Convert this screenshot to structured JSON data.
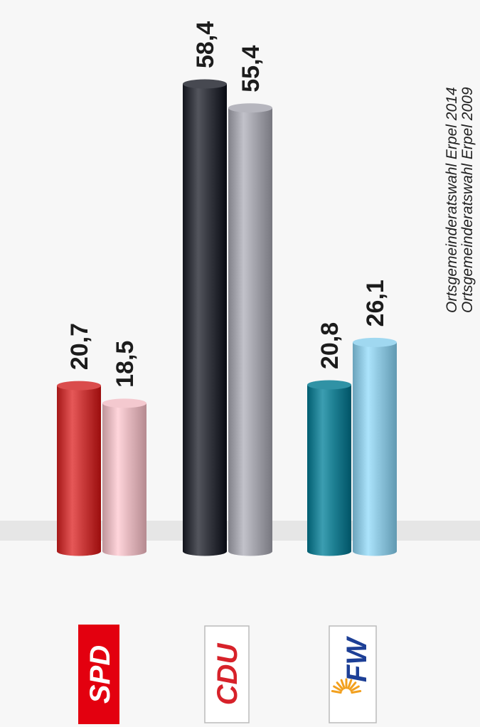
{
  "chart_data": {
    "type": "bar",
    "orientation": "rotated-90-ccw",
    "style": "3d-cylinder",
    "categories": [
      "SPD",
      "CDU",
      "FW"
    ],
    "series": [
      {
        "name": "Ortsgemeinderatswahl Erpel 2014",
        "values": [
          20.7,
          58.4,
          20.8
        ],
        "labels": [
          "20,7",
          "58,4",
          "20,8"
        ]
      },
      {
        "name": "Ortsgemeinderatswahl Erpel 2009",
        "values": [
          18.5,
          55.4,
          26.1
        ],
        "labels": [
          "18,5",
          "55,4",
          "26,1"
        ]
      }
    ],
    "colors": {
      "SPD": [
        "#c83a3a",
        "#e2b7bd"
      ],
      "CDU": [
        "#35373f",
        "#a4a4ac"
      ],
      "FW": [
        "#1e8093",
        "#8ec6de"
      ]
    },
    "legend_position": "right",
    "grid": false
  },
  "logos": {
    "spd": {
      "text": "SPD",
      "bg": "#e3000f",
      "color": "#ffffff"
    },
    "cdu": {
      "text": "CDU",
      "bg": "#ffffff",
      "color": "#d7222a"
    },
    "fw": {
      "text": "FW",
      "bg": "#ffffff",
      "color": "#1d3f96",
      "sun_color": "#f2a01e"
    }
  }
}
